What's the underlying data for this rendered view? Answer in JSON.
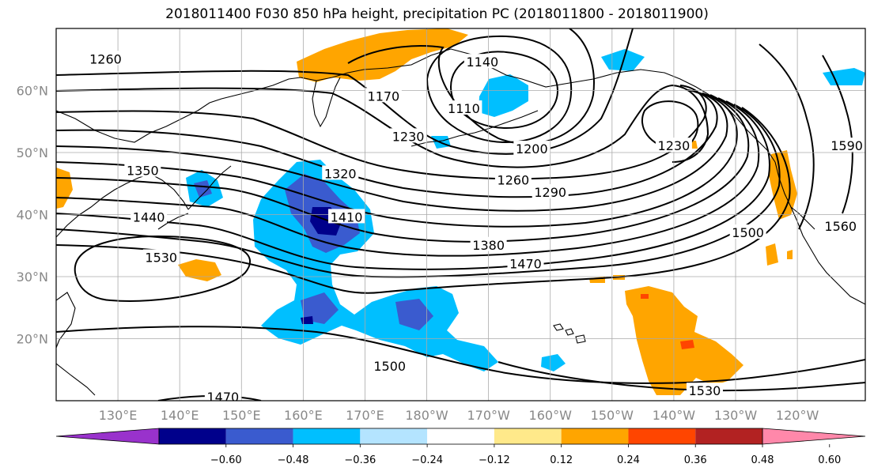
{
  "title": "2018011400 F030 850 hPa height, precipitation PC (2018011800 - 2018011900)",
  "lat_labels": [
    {
      "text": "60°N",
      "lat": 60
    },
    {
      "text": "50°N",
      "lat": 50
    },
    {
      "text": "40°N",
      "lat": 40
    },
    {
      "text": "30°N",
      "lat": 30
    },
    {
      "text": "20°N",
      "lat": 20
    }
  ],
  "lon_labels": [
    {
      "text": "130°E",
      "lon": 130
    },
    {
      "text": "140°E",
      "lon": 140
    },
    {
      "text": "150°E",
      "lon": 150
    },
    {
      "text": "160°E",
      "lon": 160
    },
    {
      "text": "170°E",
      "lon": 170
    },
    {
      "text": "180°W",
      "lon": 180
    },
    {
      "text": "170°W",
      "lon": 190
    },
    {
      "text": "160°W",
      "lon": 200
    },
    {
      "text": "150°W",
      "lon": 210
    },
    {
      "text": "140°W",
      "lon": 220
    },
    {
      "text": "130°W",
      "lon": 230
    },
    {
      "text": "120°W",
      "lon": 240
    }
  ],
  "map_extent": {
    "lon_min": 120,
    "lon_max": 251,
    "lat_min": 10,
    "lat_max": 70
  },
  "contour_labels": [
    {
      "text": "1260",
      "lon": 128,
      "lat": 65
    },
    {
      "text": "1140",
      "lon": 189,
      "lat": 64.5
    },
    {
      "text": "1170",
      "lon": 173,
      "lat": 59
    },
    {
      "text": "1110",
      "lon": 186,
      "lat": 57
    },
    {
      "text": "1230",
      "lon": 177,
      "lat": 52.5
    },
    {
      "text": "1200",
      "lon": 197,
      "lat": 50.5
    },
    {
      "text": "1230",
      "lon": 220,
      "lat": 51
    },
    {
      "text": "1350",
      "lon": 134,
      "lat": 47
    },
    {
      "text": "1320",
      "lon": 166,
      "lat": 46.5
    },
    {
      "text": "1260",
      "lon": 194,
      "lat": 45.5
    },
    {
      "text": "1290",
      "lon": 200,
      "lat": 43.5
    },
    {
      "text": "1410",
      "lon": 167,
      "lat": 39.5
    },
    {
      "text": "1440",
      "lon": 135,
      "lat": 39.5
    },
    {
      "text": "1380",
      "lon": 190,
      "lat": 35
    },
    {
      "text": "1500",
      "lon": 232,
      "lat": 37
    },
    {
      "text": "1560",
      "lon": 247,
      "lat": 38
    },
    {
      "text": "1590",
      "lon": 248,
      "lat": 51
    },
    {
      "text": "1530",
      "lon": 137,
      "lat": 33
    },
    {
      "text": "1470",
      "lon": 196,
      "lat": 32
    },
    {
      "text": "1500",
      "lon": 174,
      "lat": 15.5
    },
    {
      "text": "1530",
      "lon": 225,
      "lat": 11.5
    },
    {
      "text": "1470",
      "lon": 147,
      "lat": 10.5
    }
  ],
  "colorbar": {
    "colors": [
      "#9932cc",
      "#00008b",
      "#3a5bcf",
      "#00bfff",
      "#b4e4ff",
      "#ffffff",
      "#ffe98a",
      "#ffa500",
      "#ff4500",
      "#b22222",
      "#ff88aa"
    ],
    "ticks": [
      "−0.60",
      "−0.48",
      "−0.36",
      "−0.24",
      "−0.12",
      "0.12",
      "0.24",
      "0.36",
      "0.48",
      "0.60"
    ]
  },
  "shading_colors": {
    "blue_light": "#00bfff",
    "blue_mid": "#3a5bcf",
    "blue_dark": "#00008b",
    "orange": "#ffa500",
    "orange_red": "#ff4500",
    "yellow": "#ffe98a"
  }
}
